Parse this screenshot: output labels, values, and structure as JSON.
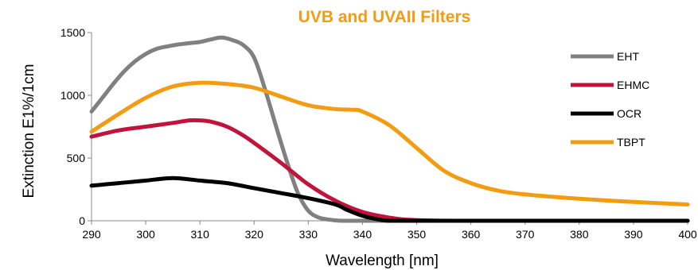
{
  "chart_data": {
    "type": "line",
    "title": "UVB and UVAII Filters",
    "title_color": "#f39c12",
    "xlabel": "Wavelength [nm]",
    "ylabel": "Extinction E1%/1cm",
    "xlim": [
      290,
      400
    ],
    "ylim": [
      0,
      1500
    ],
    "x_ticks": [
      "290",
      "300",
      "310",
      "320",
      "330",
      "340",
      "350",
      "360",
      "370",
      "380",
      "390",
      "400"
    ],
    "y_ticks": [
      "0",
      "500",
      "1000",
      "1500"
    ],
    "grid": false,
    "legend_position": "right",
    "series": [
      {
        "name": "EHT",
        "color": "#808080",
        "x": [
          290,
          292,
          294,
          296,
          298,
          300,
          302,
          304,
          306,
          308,
          310,
          312,
          314,
          316,
          318,
          320,
          322,
          324,
          326,
          328,
          330,
          332,
          334,
          336,
          338,
          340,
          345,
          350,
          360,
          370,
          380,
          390,
          400
        ],
        "y": [
          870,
          980,
          1090,
          1190,
          1270,
          1330,
          1370,
          1390,
          1405,
          1415,
          1425,
          1445,
          1460,
          1440,
          1400,
          1300,
          1050,
          760,
          480,
          230,
          80,
          25,
          8,
          0,
          0,
          0,
          0,
          0,
          0,
          0,
          0,
          0,
          0
        ]
      },
      {
        "name": "EHMC",
        "color": "#c0143c",
        "x": [
          290,
          295,
          300,
          305,
          308,
          310,
          312,
          315,
          318,
          320,
          325,
          330,
          335,
          340,
          345,
          350,
          360,
          370,
          380,
          390,
          400
        ],
        "y": [
          670,
          720,
          750,
          780,
          800,
          800,
          790,
          750,
          680,
          620,
          460,
          290,
          160,
          70,
          25,
          5,
          0,
          0,
          0,
          0,
          0
        ],
        "annotation": ""
      },
      {
        "name": "OCR",
        "color": "#000000",
        "x": [
          290,
          295,
          300,
          303,
          305,
          307,
          310,
          315,
          320,
          325,
          330,
          335,
          337,
          340,
          343,
          345,
          350,
          360,
          370,
          380,
          390,
          400
        ],
        "y": [
          280,
          300,
          320,
          335,
          340,
          335,
          320,
          300,
          260,
          220,
          180,
          130,
          90,
          40,
          10,
          0,
          0,
          0,
          0,
          0,
          0,
          0
        ]
      },
      {
        "name": "TBPT",
        "color": "#f39c12",
        "x": [
          290,
          295,
          300,
          305,
          310,
          315,
          320,
          325,
          330,
          335,
          338,
          340,
          345,
          350,
          355,
          360,
          365,
          370,
          380,
          390,
          400
        ],
        "y": [
          710,
          850,
          980,
          1070,
          1100,
          1090,
          1060,
          990,
          920,
          890,
          885,
          870,
          760,
          580,
          400,
          300,
          240,
          210,
          175,
          150,
          130
        ]
      }
    ]
  }
}
